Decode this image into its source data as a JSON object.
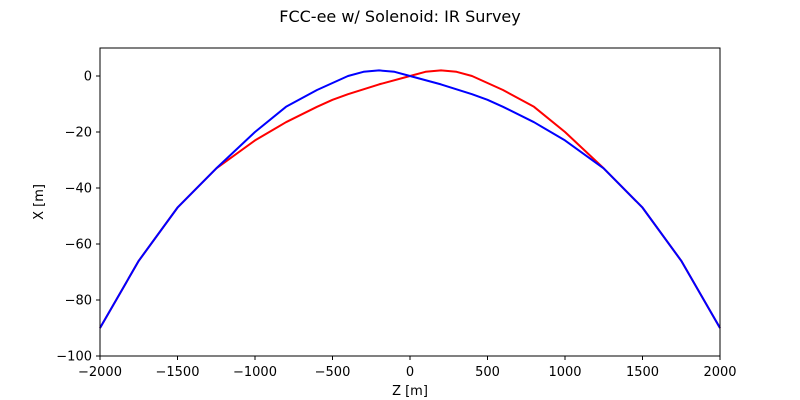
{
  "chart_data": {
    "type": "line",
    "title": "FCC-ee w/ Solenoid: IR Survey",
    "xlabel": "Z [m]",
    "ylabel": "X [m]",
    "xlim": [
      -2000,
      2000
    ],
    "ylim": [
      -100,
      10
    ],
    "xticks": [
      -2000,
      -1500,
      -1000,
      -500,
      0,
      500,
      1000,
      1500,
      2000
    ],
    "xtick_labels": [
      "−2000",
      "−1500",
      "−1000",
      "−500",
      "0",
      "500",
      "1000",
      "1500",
      "2000"
    ],
    "yticks": [
      -100,
      -80,
      -60,
      -40,
      -20,
      0
    ],
    "ytick_labels": [
      "−100",
      "−80",
      "−60",
      "−40",
      "−20",
      "0"
    ],
    "grid": false,
    "series": [
      {
        "color": "#ff0000",
        "x": [
          -2000,
          -1750,
          -1500,
          -1250,
          -1000,
          -800,
          -600,
          -500,
          -400,
          -200,
          0,
          100,
          200,
          300,
          400,
          500,
          600,
          800,
          1000,
          1250,
          1500,
          1750,
          2000
        ],
        "y": [
          -90,
          -66,
          -47,
          -33,
          -23,
          -16.5,
          -11,
          -8.5,
          -6.5,
          -3,
          0,
          1.5,
          2,
          1.5,
          0,
          -2.5,
          -5,
          -11,
          -20,
          -33,
          -47,
          -66,
          -90
        ]
      },
      {
        "color": "#0000ff",
        "x": [
          -2000,
          -1750,
          -1500,
          -1250,
          -1000,
          -800,
          -600,
          -500,
          -400,
          -300,
          -200,
          -100,
          0,
          200,
          400,
          500,
          600,
          800,
          1000,
          1250,
          1500,
          1750,
          2000
        ],
        "y": [
          -90,
          -66,
          -47,
          -33,
          -20,
          -11,
          -5,
          -2.5,
          0,
          1.5,
          2,
          1.5,
          0,
          -3,
          -6.5,
          -8.5,
          -11,
          -16.5,
          -23,
          -33,
          -47,
          -66,
          -90
        ]
      }
    ]
  }
}
